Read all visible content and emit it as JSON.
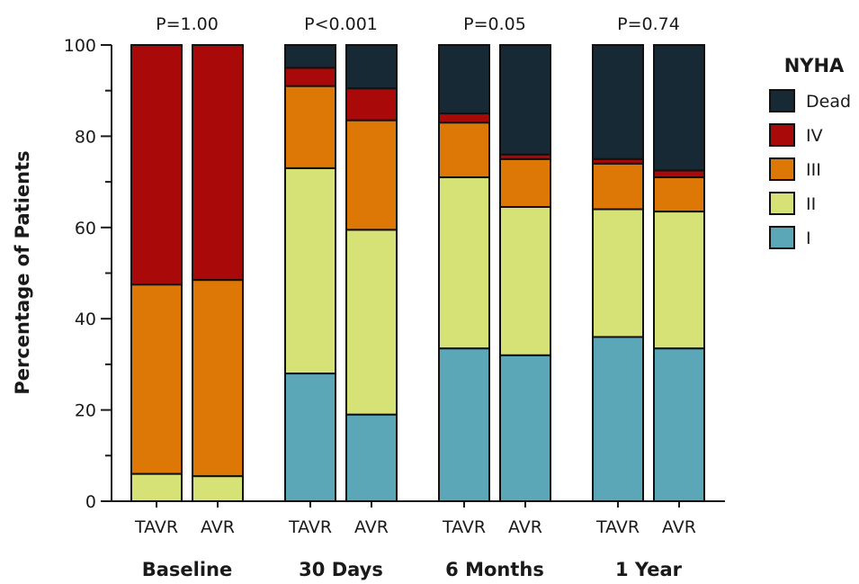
{
  "chart_data": {
    "type": "bar",
    "stacked": true,
    "ylabel": "Percentage of Patients",
    "ylim": [
      0,
      100
    ],
    "yticks": [
      0,
      20,
      40,
      60,
      80,
      100
    ],
    "legend": {
      "title": "NYHA",
      "placement": "right",
      "entries": [
        {
          "name": "Dead",
          "color": "#172935"
        },
        {
          "name": "IV",
          "color": "#a90a09"
        },
        {
          "name": "III",
          "color": "#dd7706"
        },
        {
          "name": "II",
          "color": "#d6e276"
        },
        {
          "name": "I",
          "color": "#5ba7b7"
        }
      ]
    },
    "stack_order": [
      "I",
      "II",
      "III",
      "IV",
      "Dead"
    ],
    "groups": [
      {
        "label": "Baseline",
        "p_value": "P=1.00",
        "bars": [
          {
            "label": "TAVR",
            "values": {
              "I": 0,
              "II": 6,
              "III": 41.5,
              "IV": 52.5,
              "Dead": 0
            }
          },
          {
            "label": "AVR",
            "values": {
              "I": 0,
              "II": 5.5,
              "III": 43,
              "IV": 51.5,
              "Dead": 0
            }
          }
        ]
      },
      {
        "label": "30 Days",
        "p_value": "P<0.001",
        "bars": [
          {
            "label": "TAVR",
            "values": {
              "I": 28,
              "II": 45,
              "III": 18,
              "IV": 4,
              "Dead": 5
            }
          },
          {
            "label": "AVR",
            "values": {
              "I": 19,
              "II": 40.5,
              "III": 24,
              "IV": 7,
              "Dead": 9.5
            }
          }
        ]
      },
      {
        "label": "6 Months",
        "p_value": "P=0.05",
        "bars": [
          {
            "label": "TAVR",
            "values": {
              "I": 33.5,
              "II": 37.5,
              "III": 12,
              "IV": 2,
              "Dead": 15
            }
          },
          {
            "label": "AVR",
            "values": {
              "I": 32,
              "II": 32.5,
              "III": 10.5,
              "IV": 1,
              "Dead": 24
            }
          }
        ]
      },
      {
        "label": "1 Year",
        "p_value": "P=0.74",
        "bars": [
          {
            "label": "TAVR",
            "values": {
              "I": 36,
              "II": 28,
              "III": 10,
              "IV": 1,
              "Dead": 25
            }
          },
          {
            "label": "AVR",
            "values": {
              "I": 33.5,
              "II": 30,
              "III": 7.5,
              "IV": 1.5,
              "Dead": 27.5
            }
          }
        ]
      }
    ]
  }
}
